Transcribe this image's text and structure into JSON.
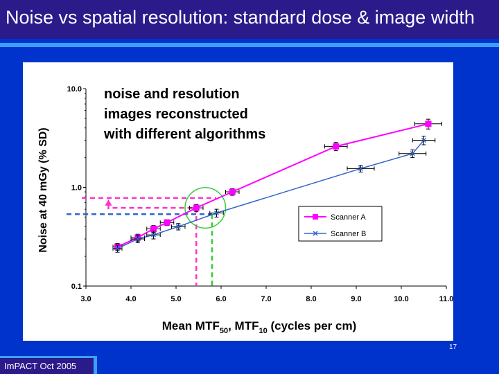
{
  "slide": {
    "title": "Noise vs spatial resolution: standard dose & image width",
    "footer": "ImPACT Oct 2005",
    "page_number": "17"
  },
  "colors": {
    "background": "#0033cc",
    "title_bar": "#2b1a8a",
    "accent_rule": "#3aa0ff",
    "scanner_a": "#ff00ff",
    "scanner_b": "#3366cc",
    "highlight_circle": "#33cc33",
    "guide_magenta": "#ff33cc",
    "guide_blue": "#3366cc",
    "guide_green": "#33cc33"
  },
  "chart_data": {
    "type": "scatter",
    "annotation": [
      "noise and resolution",
      "images reconstructed",
      "with different algorithms"
    ],
    "xlabel": {
      "main": "Mean MTF",
      "sub1": "50",
      "mid": ", MTF",
      "sub2": "10",
      "tail": " (cycles per cm)"
    },
    "ylabel": "Noise at 40 mGy (% SD)",
    "xlim": [
      3.0,
      11.0
    ],
    "ylim": [
      0.1,
      10.0
    ],
    "y_scale": "log",
    "x_ticks": [
      "3.0",
      "4.0",
      "5.0",
      "6.0",
      "7.0",
      "8.0",
      "9.0",
      "10.0",
      "11.0"
    ],
    "y_ticks": [
      "0.1",
      "1.0",
      "10.0"
    ],
    "legend_position": "right",
    "series": [
      {
        "name": "Scanner A",
        "marker": "square",
        "points": [
          {
            "x": 3.7,
            "y": 0.25,
            "xerr": 0.1,
            "yerr": 0.02
          },
          {
            "x": 4.15,
            "y": 0.31,
            "xerr": 0.15,
            "yerr": 0.025
          },
          {
            "x": 4.5,
            "y": 0.38,
            "xerr": 0.15,
            "yerr": 0.03
          },
          {
            "x": 4.8,
            "y": 0.44,
            "xerr": 0.15,
            "yerr": 0.03
          },
          {
            "x": 5.45,
            "y": 0.62,
            "xerr": 0.15,
            "yerr": 0.05
          },
          {
            "x": 6.25,
            "y": 0.9,
            "xerr": 0.15,
            "yerr": 0.07
          },
          {
            "x": 8.55,
            "y": 2.6,
            "xerr": 0.25,
            "yerr": 0.25
          },
          {
            "x": 10.6,
            "y": 4.4,
            "xerr": 0.3,
            "yerr": 0.5
          }
        ]
      },
      {
        "name": "Scanner B",
        "marker": "cross",
        "points": [
          {
            "x": 3.7,
            "y": 0.24,
            "xerr": 0.1,
            "yerr": 0.02
          },
          {
            "x": 4.15,
            "y": 0.3,
            "xerr": 0.15,
            "yerr": 0.025
          },
          {
            "x": 4.5,
            "y": 0.33,
            "xerr": 0.15,
            "yerr": 0.03
          },
          {
            "x": 5.05,
            "y": 0.4,
            "xerr": 0.15,
            "yerr": 0.03
          },
          {
            "x": 5.9,
            "y": 0.55,
            "xerr": 0.15,
            "yerr": 0.05
          },
          {
            "x": 9.1,
            "y": 1.55,
            "xerr": 0.3,
            "yerr": 0.12
          },
          {
            "x": 10.25,
            "y": 2.2,
            "xerr": 0.3,
            "yerr": 0.2
          },
          {
            "x": 10.5,
            "y": 3.0,
            "xerr": 0.25,
            "yerr": 0.3
          }
        ]
      }
    ],
    "guides": {
      "highlight_circle": {
        "x": 5.65,
        "y": 0.62,
        "rx": 0.45,
        "ry": 0.42
      },
      "magenta_upper_y": 0.78,
      "magenta_lower_y": 0.62,
      "blue_y": 0.535,
      "magenta_x": 5.45,
      "green_x": 5.8,
      "arrow_x": 3.5
    }
  }
}
